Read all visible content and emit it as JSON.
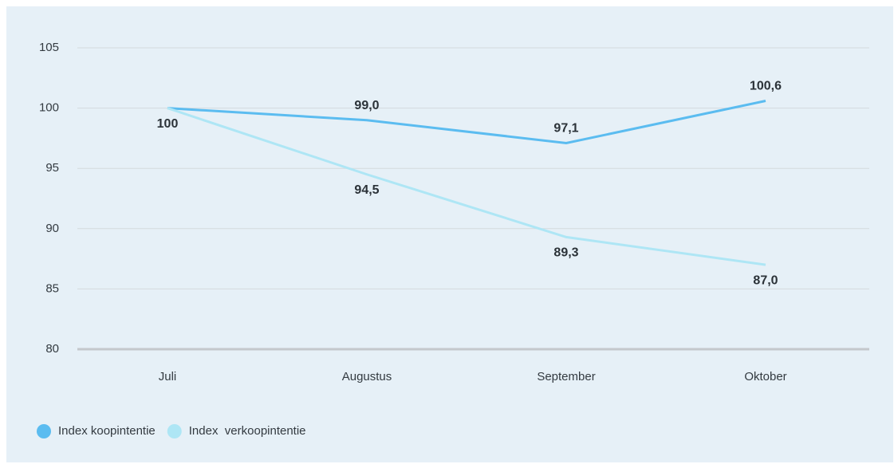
{
  "chart_data": {
    "type": "line",
    "categories": [
      "Juli",
      "Augustus",
      "September",
      "Oktober"
    ],
    "series": [
      {
        "name": "Index koopintentie",
        "color": "#5bbcf0",
        "values": [
          100,
          99.0,
          97.1,
          100.6
        ],
        "value_labels": [
          null,
          "99,0",
          "97,1",
          "100,6"
        ]
      },
      {
        "name": "Index  verkoopintentie",
        "color": "#aee6f5",
        "values": [
          100,
          94.5,
          89.3,
          87.0
        ],
        "value_labels": [
          "100",
          "94,5",
          "89,3",
          "87,0"
        ]
      }
    ],
    "ylim": [
      80,
      105
    ],
    "yticks": [
      80,
      85,
      90,
      95,
      100,
      105
    ],
    "grid": true,
    "legend": "bottom-left"
  }
}
